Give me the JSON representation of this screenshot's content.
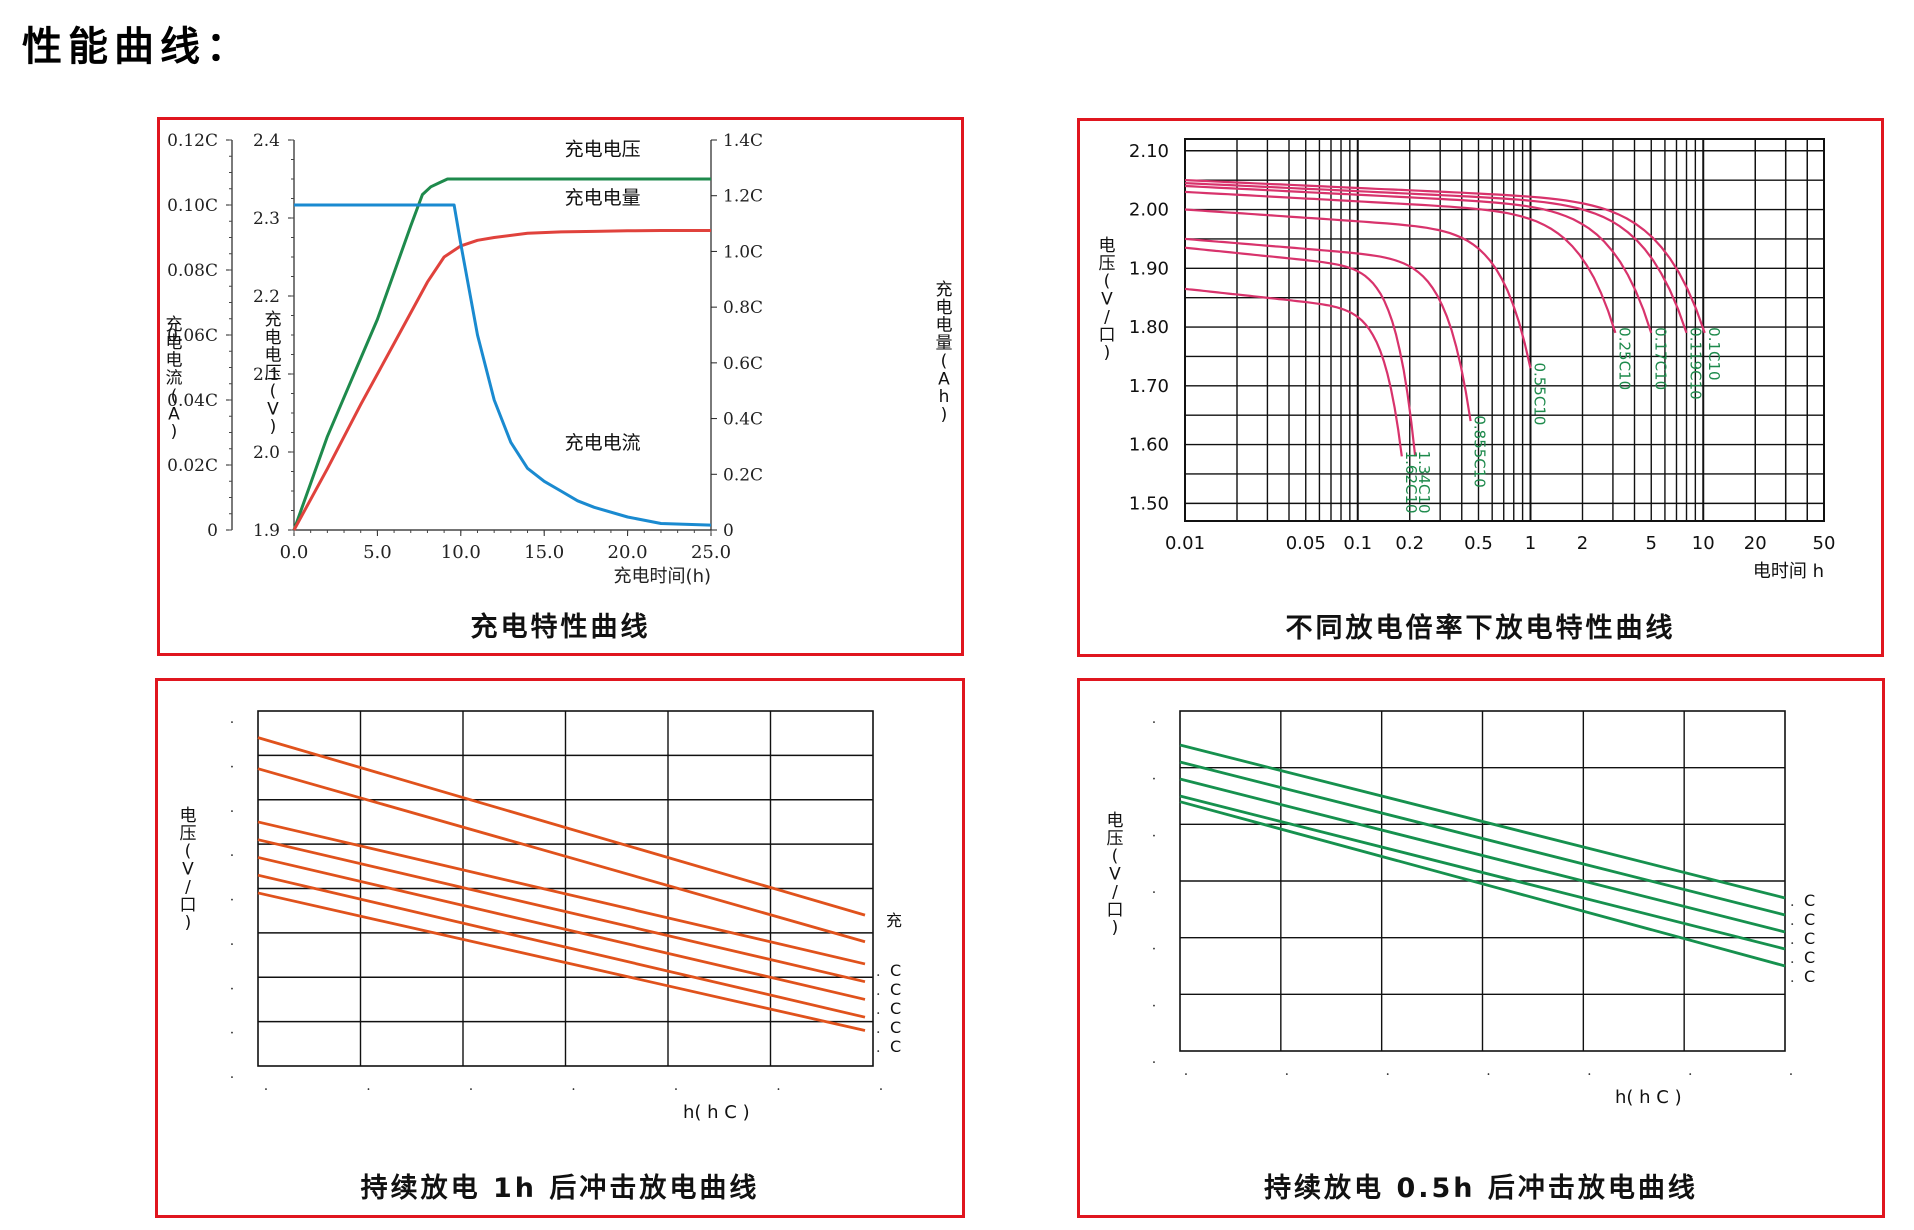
{
  "page": {
    "heading": "性能曲线："
  },
  "colors": {
    "frame": "#e0161f",
    "voltage": "#1e8a4c",
    "capacity": "#e0423c",
    "current": "#1a8ad0",
    "rate_curves": "#d8336c",
    "rate_labels": "#1e8a4c",
    "pulse_1h": "#e0521c",
    "pulse_05h": "#16914e"
  },
  "chart_data": [
    {
      "id": "charge",
      "type": "line",
      "caption": "充电特性曲线",
      "xlabel": "充电时间(h)",
      "x_ticks": [
        "0.0",
        "5.0",
        "10.0",
        "15.0",
        "20.0",
        "25.0"
      ],
      "xlim": [
        0,
        25
      ],
      "y_current": {
        "label": "充电电流(A)",
        "ticks": [
          "0",
          "0.02C",
          "0.04C",
          "0.06C",
          "0.08C",
          "0.10C",
          "0.12C"
        ],
        "ylim": [
          0,
          0.12
        ]
      },
      "y_voltage": {
        "label": "充电电压(V)",
        "ticks": [
          "1.9",
          "2.0",
          "2.1",
          "2.2",
          "2.3",
          "2.4"
        ],
        "ylim": [
          1.9,
          2.4
        ]
      },
      "y_capacity": {
        "label": "充电电量(Ah)",
        "ticks": [
          "0",
          "0.2C",
          "0.4C",
          "0.6C",
          "0.8C",
          "1.0C",
          "1.2C",
          "1.4C"
        ],
        "ylim": [
          0,
          1.4
        ]
      },
      "series": [
        {
          "name": "充电电压",
          "axis": "voltage",
          "color": "#1e8a4c",
          "x": [
            0,
            1,
            2,
            3,
            4,
            5,
            6,
            7,
            7.7,
            8.2,
            8.7,
            9.2,
            9.6,
            10,
            12,
            15,
            20,
            25
          ],
          "y": [
            1.9,
            1.96,
            2.02,
            2.07,
            2.12,
            2.17,
            2.23,
            2.29,
            2.33,
            2.34,
            2.345,
            2.35,
            2.35,
            2.35,
            2.35,
            2.35,
            2.35,
            2.35
          ]
        },
        {
          "name": "充电电量",
          "axis": "capacity",
          "color": "#e0423c",
          "x": [
            0,
            2,
            4,
            6,
            8,
            9,
            10,
            11,
            12,
            14,
            16,
            18,
            20,
            22,
            25
          ],
          "y": [
            0,
            0.22,
            0.45,
            0.67,
            0.89,
            0.98,
            1.02,
            1.04,
            1.05,
            1.065,
            1.07,
            1.072,
            1.074,
            1.075,
            1.075
          ]
        },
        {
          "name": "充电电流",
          "axis": "current",
          "color": "#1a8ad0",
          "x": [
            0,
            9.6,
            10,
            11,
            12,
            13,
            14,
            15,
            16,
            17,
            18,
            20,
            22,
            25
          ],
          "y": [
            0.1,
            0.1,
            0.088,
            0.06,
            0.04,
            0.027,
            0.019,
            0.015,
            0.012,
            0.009,
            0.007,
            0.004,
            0.002,
            0.0015
          ]
        }
      ]
    },
    {
      "id": "rate",
      "type": "line",
      "caption": "不同放电倍率下放电特性曲线",
      "xlabel": "电时间 h",
      "ylabel": "电压(V/口)",
      "x_scale": "log",
      "xlim": [
        0.01,
        50
      ],
      "x_ticks": [
        "0.01",
        "0.05",
        "0.1",
        "0.2",
        "0.5",
        "1",
        "2",
        "5",
        "10",
        "20",
        "50"
      ],
      "y_ticks": [
        "1.50",
        "1.60",
        "1.70",
        "1.80",
        "1.90",
        "2.00",
        "2.10"
      ],
      "ylim": [
        1.47,
        2.12
      ],
      "series": [
        {
          "name": "0.1C10",
          "end_x": 10.2,
          "end_y": 1.81,
          "start_y": 2.05
        },
        {
          "name": "0.119C10",
          "end_x": 8.0,
          "end_y": 1.81,
          "start_y": 2.045
        },
        {
          "name": "0.17C10",
          "end_x": 5.0,
          "end_y": 1.81,
          "start_y": 2.04
        },
        {
          "name": "0.25C10",
          "end_x": 3.1,
          "end_y": 1.81,
          "start_y": 2.03
        },
        {
          "name": "0.55C10",
          "end_x": 1.0,
          "end_y": 1.75,
          "start_y": 2.0
        },
        {
          "name": "0.855C10",
          "end_x": 0.45,
          "end_y": 1.66,
          "start_y": 1.95
        },
        {
          "name": "1.34C10",
          "end_x": 0.215,
          "end_y": 1.6,
          "start_y": 1.935
        },
        {
          "name": "1.62C10",
          "end_x": 0.18,
          "end_y": 1.6,
          "start_y": 1.865
        }
      ]
    },
    {
      "id": "pulse-1h",
      "type": "line",
      "caption": "持续放电 1h 后冲击放电曲线",
      "ylabel": "电压(V/口)",
      "xlabel": "h( h C )",
      "legend_title": "充",
      "legend_entries": [
        "C",
        "C",
        "C",
        "C",
        "C"
      ],
      "xlim": [
        0,
        6
      ],
      "ylim": [
        0,
        8
      ],
      "series": [
        {
          "y_start": 7.4,
          "y_end": 3.4
        },
        {
          "y_start": 6.7,
          "y_end": 2.8
        },
        {
          "y_start": 5.5,
          "y_end": 2.3
        },
        {
          "y_start": 5.1,
          "y_end": 1.9
        },
        {
          "y_start": 4.7,
          "y_end": 1.5
        },
        {
          "y_start": 4.3,
          "y_end": 1.1
        },
        {
          "y_start": 3.9,
          "y_end": 0.8
        }
      ]
    },
    {
      "id": "pulse-05h",
      "type": "line",
      "caption": "持续放电 0.5h 后冲击放电曲线",
      "ylabel": "电压(V/口)",
      "xlabel": "h( h C )",
      "legend_entries": [
        "C",
        "C",
        "C",
        "C",
        "C"
      ],
      "xlim": [
        0,
        6
      ],
      "ylim": [
        0,
        6
      ],
      "series": [
        {
          "y_start": 5.4,
          "y_end": 2.7
        },
        {
          "y_start": 5.1,
          "y_end": 2.4
        },
        {
          "y_start": 4.8,
          "y_end": 2.1
        },
        {
          "y_start": 4.5,
          "y_end": 1.8
        },
        {
          "y_start": 4.4,
          "y_end": 1.5
        }
      ]
    }
  ]
}
